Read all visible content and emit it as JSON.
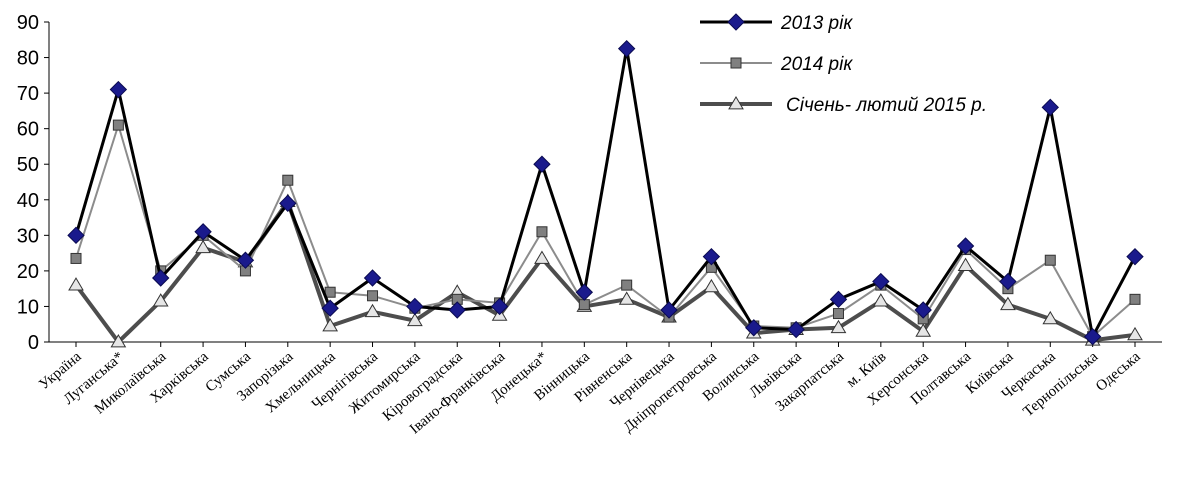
{
  "chart_data": {
    "type": "line",
    "title": "",
    "xlabel": "",
    "ylabel": "",
    "ylim": [
      0,
      90
    ],
    "yticks": [
      0,
      10,
      20,
      30,
      40,
      50,
      60,
      70,
      80,
      90
    ],
    "grid": false,
    "legend_position": "top-right",
    "categories": [
      "Україна",
      "Луганська*",
      "Миколаївська",
      "Харківська",
      "Сумська",
      "Запорізька",
      "Хмельницька",
      "Чернігівська",
      "Житомирська",
      "Кіровоградська",
      "Івано-Франківська",
      "Донецька*",
      "Вінницька",
      "Рівненська",
      "Чернівецька",
      "Дніпропетровська",
      "Волинська",
      "Львівська",
      "Закарпатська",
      "м. Київ",
      "Херсонська",
      "Полтавська",
      "Київська",
      "Черкаська",
      "Тернопільська",
      "Одеська"
    ],
    "series": [
      {
        "name": "2013 рік",
        "color": "#000000",
        "marker_fill": "#1a1a8c",
        "marker": "diamond",
        "values": [
          30,
          71,
          18,
          31,
          23,
          39,
          9.5,
          18,
          10,
          9,
          10,
          50,
          14,
          82.5,
          9,
          24,
          4,
          3.5,
          12,
          17,
          9,
          27,
          17,
          66,
          1.5,
          24
        ]
      },
      {
        "name": "2014 рік",
        "color": "#8c8c8c",
        "marker_fill": "#808080",
        "marker": "square",
        "values": [
          23.5,
          61,
          20,
          30,
          20,
          45.5,
          14,
          13,
          9.5,
          12,
          11,
          31,
          10.5,
          16,
          7,
          21,
          4.5,
          4,
          8,
          16,
          6.5,
          26,
          15,
          23,
          1.5,
          12
        ]
      },
      {
        "name": "Січень- лютий 2015 р.",
        "color": "#4d4d4d",
        "marker_fill": "#e6e6e6",
        "marker": "triangle",
        "values": [
          16,
          0,
          11.5,
          26.5,
          22.5,
          39.5,
          4.5,
          8.5,
          6,
          14,
          7.5,
          23.5,
          10,
          12,
          7,
          15.5,
          2.5,
          3.5,
          4,
          11.5,
          3,
          21.5,
          10.5,
          6.5,
          0.5,
          2
        ]
      }
    ]
  }
}
